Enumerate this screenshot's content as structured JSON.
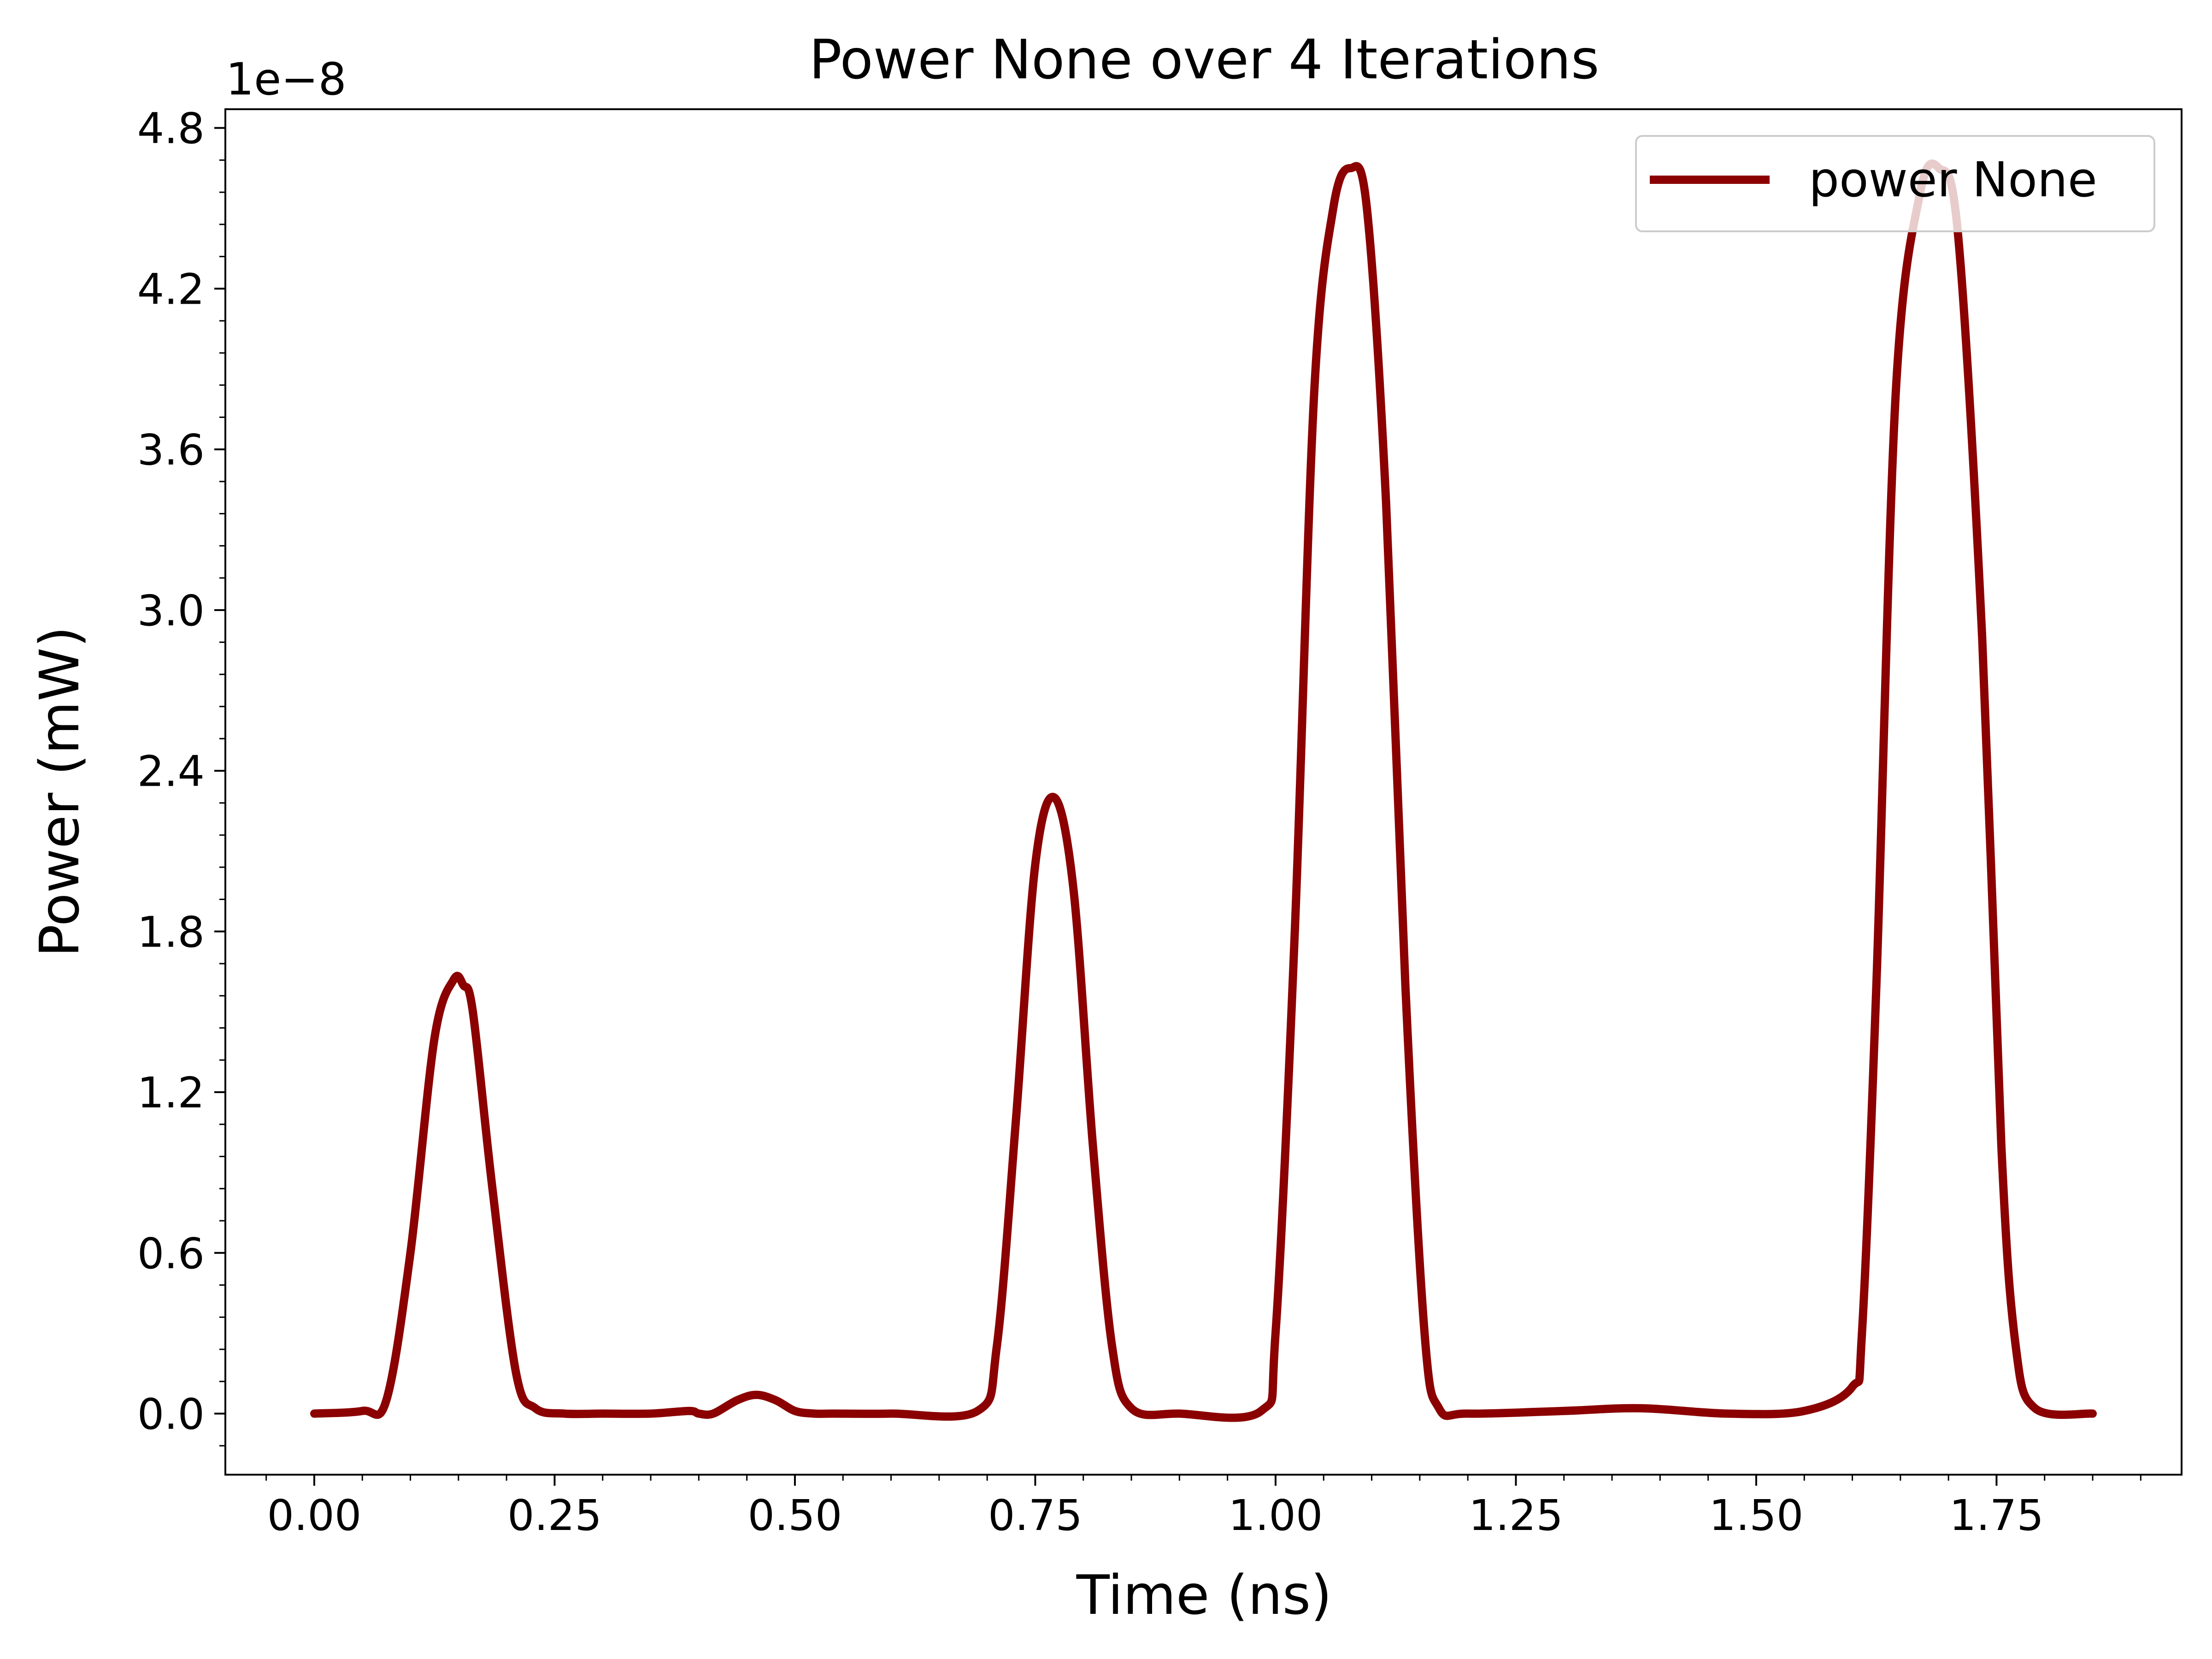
{
  "chart_data": {
    "type": "line",
    "title": "Power None over 4 Iterations",
    "xlabel": "Time (ns)",
    "ylabel": "Power (mW)",
    "y_offset_label": "1e−8",
    "y_scale_factor": 1e-08,
    "xlim": [
      -0.0925,
      1.9425
    ],
    "ylim": [
      -0.228,
      4.87
    ],
    "x_ticks": [
      0.0,
      0.25,
      0.5,
      0.75,
      1.0,
      1.25,
      1.5,
      1.75
    ],
    "x_tick_labels": [
      "0.00",
      "0.25",
      "0.50",
      "0.75",
      "1.00",
      "1.25",
      "1.50",
      "1.75"
    ],
    "y_ticks": [
      0.0,
      0.6,
      1.2,
      1.8,
      2.4,
      3.0,
      3.6,
      4.2,
      4.8
    ],
    "y_tick_labels": [
      "0.0",
      "0.6",
      "1.2",
      "1.8",
      "2.4",
      "3.0",
      "3.6",
      "4.2",
      "4.8"
    ],
    "grid": false,
    "legend": {
      "position": "top-right",
      "entries": [
        "power None"
      ]
    },
    "series": [
      {
        "name": "power None",
        "color": "#8b0000",
        "x": [
          0.0,
          0.05,
          0.075,
          0.1,
          0.125,
          0.145,
          0.155,
          0.165,
          0.185,
          0.21,
          0.23,
          0.26,
          0.3,
          0.35,
          0.39,
          0.4,
          0.415,
          0.44,
          0.46,
          0.48,
          0.5,
          0.52,
          0.54,
          0.6,
          0.69,
          0.71,
          0.73,
          0.75,
          0.77,
          0.79,
          0.81,
          0.83,
          0.85,
          0.9,
          0.985,
          1.0,
          1.02,
          1.04,
          1.06,
          1.078,
          1.095,
          1.115,
          1.135,
          1.155,
          1.17,
          1.2,
          1.3,
          1.38,
          1.47,
          1.55,
          1.6,
          1.61,
          1.625,
          1.645,
          1.67,
          1.69,
          1.71,
          1.735,
          1.755,
          1.77,
          1.79,
          1.85
        ],
        "y": [
          0.0,
          0.01,
          0.05,
          0.6,
          1.4,
          1.62,
          1.6,
          1.5,
          0.85,
          0.15,
          0.02,
          0.0,
          0.0,
          0.0,
          0.01,
          0.0,
          0.0,
          0.05,
          0.07,
          0.05,
          0.01,
          0.0,
          0.0,
          0.0,
          0.01,
          0.25,
          1.1,
          2.05,
          2.3,
          1.95,
          1.0,
          0.25,
          0.02,
          0.0,
          0.01,
          0.3,
          1.8,
          3.8,
          4.5,
          4.65,
          4.5,
          3.4,
          1.6,
          0.3,
          0.02,
          0.0,
          0.01,
          0.02,
          0.0,
          0.01,
          0.1,
          0.3,
          1.6,
          3.8,
          4.55,
          4.65,
          4.4,
          2.9,
          1.0,
          0.25,
          0.02,
          0.0
        ]
      }
    ]
  }
}
